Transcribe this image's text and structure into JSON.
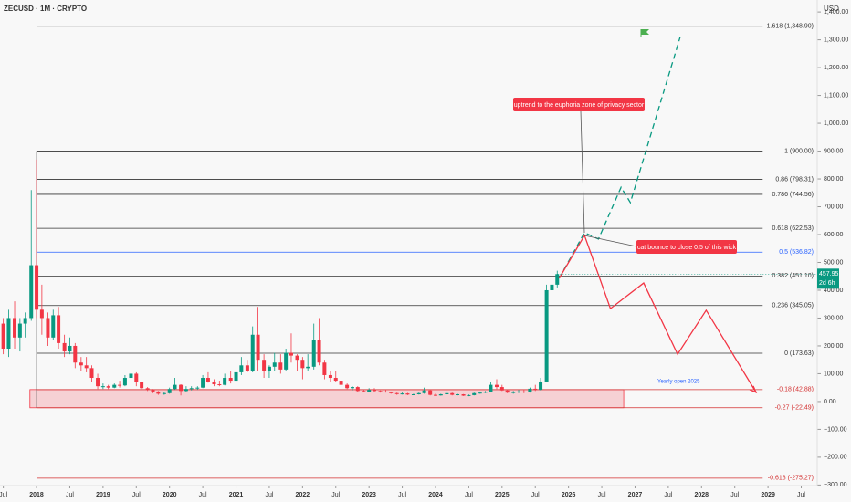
{
  "chart_data": {
    "type": "candlestick",
    "title": "ZECUSD · 1M · CRYPTO",
    "currency": "USD",
    "up_color": "#089981",
    "down_color": "#f23645",
    "xlim": [
      2017.45,
      2029.74
    ],
    "ylim": [
      -302,
      1443
    ],
    "xticks": [
      {
        "value": 2017.5,
        "label": "Jul"
      },
      2018,
      {
        "value": 2018.5,
        "label": "Jul"
      },
      2019,
      {
        "value": 2019.5,
        "label": "Jul"
      },
      2020,
      {
        "value": 2020.5,
        "label": "Jul"
      },
      2021,
      {
        "value": 2021.5,
        "label": "Jul"
      },
      2022,
      {
        "value": 2022.5,
        "label": "Jul"
      },
      2023,
      {
        "value": 2023.5,
        "label": "Jul"
      },
      2024,
      {
        "value": 2024.5,
        "label": "Jul"
      },
      2025,
      {
        "value": 2025.5,
        "label": "Jul"
      },
      2026,
      {
        "value": 2026.5,
        "label": "Jul"
      },
      2027,
      {
        "value": 2027.5,
        "label": "Jul"
      },
      2028,
      {
        "value": 2028.5,
        "label": "Jul"
      },
      2029,
      {
        "value": 2029.5,
        "label": "Jul"
      }
    ],
    "yticks": [
      {
        "value": 1400,
        "label": "1,400.00"
      },
      {
        "value": 1300,
        "label": "1,300.00"
      },
      {
        "value": 1200,
        "label": "1,200.00"
      },
      {
        "value": 1100,
        "label": "1,100.00"
      },
      {
        "value": 1000,
        "label": "1,000.00"
      },
      {
        "value": 900,
        "label": "900.00"
      },
      {
        "value": 800,
        "label": "800.00"
      },
      {
        "value": 700,
        "label": "700.00"
      },
      {
        "value": 600,
        "label": "600.00"
      },
      {
        "value": 500,
        "label": "500.00"
      },
      {
        "value": 400,
        "label": "400.00"
      },
      {
        "value": 300,
        "label": "300.00"
      },
      {
        "value": 200,
        "label": "200.00"
      },
      {
        "value": 100,
        "label": "100.00"
      },
      {
        "value": 0,
        "label": "0.00"
      },
      {
        "value": -100,
        "label": "−100.00"
      },
      {
        "value": -200,
        "label": "−200.00"
      },
      {
        "value": -300,
        "label": "−300.00"
      }
    ],
    "x": [
      2017.5,
      2017.58,
      2017.67,
      2017.75,
      2017.83,
      2017.92,
      2018.0,
      2018.08,
      2018.17,
      2018.25,
      2018.33,
      2018.42,
      2018.5,
      2018.58,
      2018.67,
      2018.75,
      2018.83,
      2018.92,
      2019.0,
      2019.08,
      2019.17,
      2019.25,
      2019.33,
      2019.42,
      2019.5,
      2019.58,
      2019.67,
      2019.75,
      2019.83,
      2019.92,
      2020.0,
      2020.08,
      2020.17,
      2020.25,
      2020.33,
      2020.42,
      2020.5,
      2020.58,
      2020.67,
      2020.75,
      2020.83,
      2020.92,
      2021.0,
      2021.08,
      2021.17,
      2021.25,
      2021.33,
      2021.42,
      2021.5,
      2021.58,
      2021.67,
      2021.75,
      2021.83,
      2021.92,
      2022.0,
      2022.08,
      2022.17,
      2022.25,
      2022.33,
      2022.42,
      2022.5,
      2022.58,
      2022.67,
      2022.75,
      2022.83,
      2022.92,
      2023.0,
      2023.08,
      2023.17,
      2023.25,
      2023.33,
      2023.42,
      2023.5,
      2023.58,
      2023.67,
      2023.75,
      2023.83,
      2023.92,
      2024.0,
      2024.08,
      2024.17,
      2024.25,
      2024.33,
      2024.42,
      2024.5,
      2024.58,
      2024.67,
      2024.75,
      2024.83,
      2024.92,
      2025.0,
      2025.08,
      2025.17,
      2025.25,
      2025.33,
      2025.42,
      2025.5,
      2025.58,
      2025.67,
      2025.75,
      2025.83
    ],
    "candles": [
      [
        280,
        300,
        170,
        190
      ],
      [
        190,
        330,
        160,
        300
      ],
      [
        300,
        360,
        190,
        230
      ],
      [
        230,
        300,
        180,
        280
      ],
      [
        280,
        320,
        230,
        300
      ],
      [
        300,
        760,
        290,
        490
      ],
      [
        490,
        870,
        300,
        330
      ],
      [
        330,
        420,
        240,
        300
      ],
      [
        300,
        320,
        200,
        230
      ],
      [
        230,
        330,
        220,
        310
      ],
      [
        310,
        340,
        190,
        210
      ],
      [
        210,
        240,
        160,
        180
      ],
      [
        180,
        230,
        170,
        200
      ],
      [
        200,
        210,
        120,
        140
      ],
      [
        140,
        160,
        110,
        130
      ],
      [
        130,
        160,
        105,
        120
      ],
      [
        120,
        130,
        70,
        85
      ],
      [
        85,
        100,
        45,
        55
      ],
      [
        55,
        65,
        45,
        55
      ],
      [
        55,
        60,
        45,
        50
      ],
      [
        50,
        65,
        48,
        60
      ],
      [
        60,
        75,
        50,
        58
      ],
      [
        58,
        95,
        55,
        85
      ],
      [
        85,
        125,
        75,
        100
      ],
      [
        100,
        105,
        55,
        70
      ],
      [
        70,
        72,
        45,
        48
      ],
      [
        48,
        52,
        38,
        42
      ],
      [
        42,
        45,
        30,
        36
      ],
      [
        36,
        38,
        24,
        28
      ],
      [
        28,
        35,
        24,
        30
      ],
      [
        30,
        50,
        28,
        45
      ],
      [
        45,
        85,
        42,
        60
      ],
      [
        60,
        62,
        22,
        38
      ],
      [
        38,
        55,
        35,
        45
      ],
      [
        45,
        55,
        40,
        48
      ],
      [
        48,
        55,
        42,
        50
      ],
      [
        50,
        95,
        48,
        85
      ],
      [
        85,
        105,
        68,
        72
      ],
      [
        72,
        80,
        55,
        62
      ],
      [
        62,
        75,
        55,
        60
      ],
      [
        60,
        100,
        58,
        85
      ],
      [
        85,
        110,
        65,
        75
      ],
      [
        75,
        120,
        70,
        105
      ],
      [
        105,
        160,
        95,
        130
      ],
      [
        130,
        150,
        105,
        110
      ],
      [
        110,
        270,
        105,
        240
      ],
      [
        240,
        340,
        110,
        150
      ],
      [
        150,
        170,
        85,
        110
      ],
      [
        110,
        130,
        85,
        125
      ],
      [
        125,
        175,
        110,
        140
      ],
      [
        140,
        170,
        100,
        115
      ],
      [
        115,
        190,
        110,
        175
      ],
      [
        175,
        245,
        140,
        165
      ],
      [
        165,
        170,
        110,
        150
      ],
      [
        150,
        160,
        80,
        120
      ],
      [
        120,
        170,
        110,
        125
      ],
      [
        125,
        280,
        115,
        220
      ],
      [
        220,
        300,
        130,
        140
      ],
      [
        140,
        150,
        80,
        95
      ],
      [
        95,
        110,
        70,
        85
      ],
      [
        85,
        110,
        70,
        75
      ],
      [
        75,
        95,
        55,
        60
      ],
      [
        60,
        65,
        45,
        48
      ],
      [
        48,
        55,
        40,
        52
      ],
      [
        52,
        55,
        35,
        38
      ],
      [
        38,
        42,
        33,
        35
      ],
      [
        35,
        48,
        34,
        42
      ],
      [
        42,
        48,
        35,
        38
      ],
      [
        38,
        40,
        32,
        36
      ],
      [
        36,
        42,
        32,
        34
      ],
      [
        34,
        36,
        28,
        30
      ],
      [
        30,
        32,
        24,
        27
      ],
      [
        27,
        32,
        25,
        29
      ],
      [
        29,
        31,
        23,
        25
      ],
      [
        25,
        28,
        24,
        26
      ],
      [
        26,
        32,
        25,
        30
      ],
      [
        30,
        50,
        28,
        40
      ],
      [
        40,
        42,
        22,
        24
      ],
      [
        24,
        28,
        20,
        22
      ],
      [
        22,
        28,
        21,
        26
      ],
      [
        26,
        40,
        24,
        30
      ],
      [
        30,
        32,
        22,
        24
      ],
      [
        24,
        28,
        22,
        26
      ],
      [
        26,
        27,
        20,
        21
      ],
      [
        21,
        25,
        19,
        23
      ],
      [
        23,
        32,
        22,
        30
      ],
      [
        30,
        36,
        28,
        32
      ],
      [
        32,
        38,
        30,
        35
      ],
      [
        35,
        70,
        33,
        60
      ],
      [
        60,
        80,
        45,
        52
      ],
      [
        52,
        60,
        38,
        40
      ],
      [
        40,
        42,
        30,
        32
      ],
      [
        32,
        38,
        28,
        34
      ],
      [
        34,
        42,
        30,
        36
      ],
      [
        36,
        42,
        30,
        34
      ],
      [
        34,
        50,
        32,
        46
      ],
      [
        46,
        60,
        38,
        42
      ],
      [
        42,
        85,
        40,
        72
      ],
      [
        72,
        420,
        70,
        400
      ],
      [
        400,
        744,
        350,
        420
      ],
      [
        420,
        470,
        410,
        457.95
      ]
    ],
    "last_price": {
      "value": 457.95,
      "label": "457.95",
      "countdown": "2d 6h"
    },
    "fib_range": [
      2018.0,
      2028.92
    ],
    "fib_levels": [
      {
        "label": "1.618 (1,348.90)",
        "value": 1348.9,
        "color": "#333333"
      },
      {
        "label": "1 (900.00)",
        "value": 900,
        "color": "#333333"
      },
      {
        "label": "0.86 (798.31)",
        "value": 798.31,
        "color": "#333333"
      },
      {
        "label": "0.786 (744.56)",
        "value": 744.56,
        "color": "#333333"
      },
      {
        "label": "0.618 (622.53)",
        "value": 622.53,
        "color": "#333333"
      },
      {
        "label": "0.5 (536.82)",
        "value": 536.82,
        "color": "#2962ff"
      },
      {
        "label": "0.382 (451.10)",
        "value": 451.1,
        "color": "#333333"
      },
      {
        "label": "0.236 (345.05)",
        "value": 345.05,
        "color": "#333333"
      },
      {
        "label": "0 (173.63)",
        "value": 173.63,
        "color": "#333333"
      },
      {
        "label": "-0.18 (42.88)",
        "value": 42.88,
        "color": "#d32f2f"
      },
      {
        "label": "-0.27 (-22.49)",
        "value": -22.49,
        "color": "#d32f2f"
      },
      {
        "label": "-0.618 (-275.27)",
        "value": -275.27,
        "color": "#d32f2f"
      }
    ],
    "zone": {
      "x": [
        2017.9,
        2026.83
      ],
      "y": [
        -22.49,
        42.88
      ],
      "color": "#f23645"
    },
    "projections": [
      {
        "color": "#089981",
        "dashed": true,
        "x": [
          2025.86,
          2026.24,
          2026.45,
          2026.79,
          2026.93,
          2027.68
        ],
        "y": [
          443,
          607,
          584,
          770,
          715,
          1311
        ]
      },
      {
        "color": "#f23645",
        "dashed": false,
        "x": [
          2025.86,
          2026.24,
          2026.63,
          2027.13,
          2027.64,
          2028.07,
          2028.82
        ],
        "y": [
          443,
          597,
          334,
          426,
          170,
          328,
          33
        ]
      }
    ],
    "annotations": [
      "uptrend to the euphoria zone of privacy sector",
      "cat bounce to close 0.5 of this wick",
      "Yearly open 2025"
    ]
  }
}
